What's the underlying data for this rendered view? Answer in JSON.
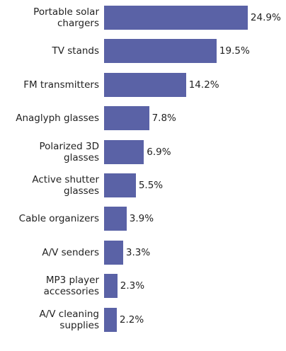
{
  "chart_data": {
    "type": "bar",
    "orientation": "horizontal",
    "categories": [
      "Portable solar chargers",
      "TV stands",
      "FM transmitters",
      "Anaglyph glasses",
      "Polarized 3D glasses",
      "Active shutter glasses",
      "Cable organizers",
      "A/V senders",
      "MP3 player accessories",
      "A/V cleaning supplies"
    ],
    "values": [
      24.9,
      19.5,
      14.2,
      7.8,
      6.9,
      5.5,
      3.9,
      3.3,
      2.3,
      2.2
    ],
    "value_labels": [
      "24.9%",
      "19.5%",
      "14.2%",
      "7.8%",
      "6.9%",
      "5.5%",
      "3.9%",
      "3.3%",
      "2.3%",
      "2.2%"
    ],
    "color": "#5a62a6"
  }
}
